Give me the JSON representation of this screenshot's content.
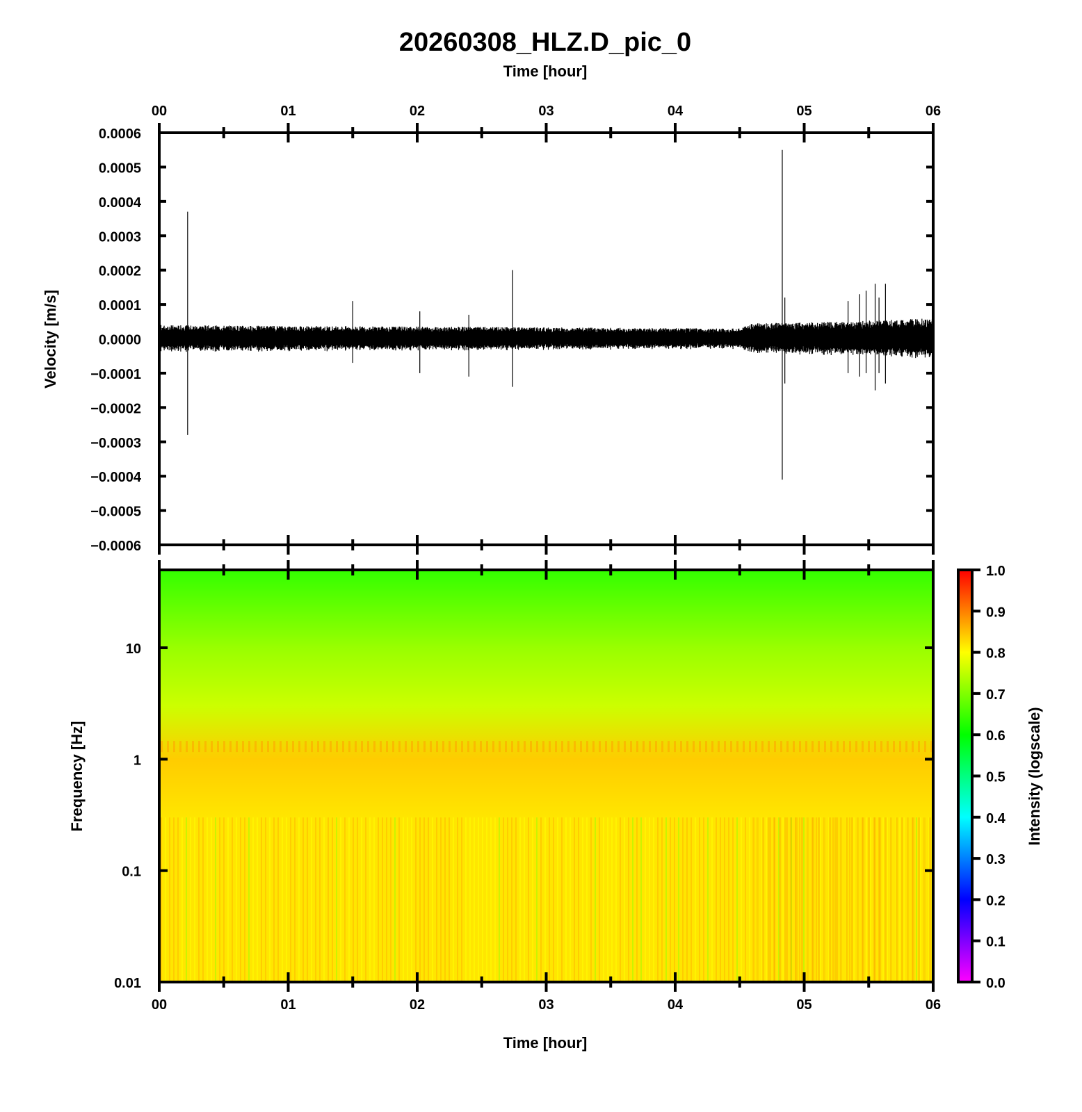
{
  "chart_data": [
    {
      "type": "line",
      "title": "20260308_HLZ.D_pic_0",
      "xlabel": "Time [hour]",
      "ylabel": "Velocity [m/s]",
      "x_ticks": [
        "00",
        "01",
        "02",
        "03",
        "04",
        "05",
        "06"
      ],
      "y_ticks": [
        "0.0006",
        "0.0005",
        "0.0004",
        "0.0003",
        "0.0002",
        "0.0001",
        "0.0000",
        "−0.0001",
        "−0.0002",
        "−0.0003",
        "−0.0004",
        "−0.0005",
        "−0.0006"
      ],
      "xlim": [
        0,
        6
      ],
      "ylim": [
        -0.0006,
        0.0006
      ],
      "noise_envelope": {
        "x_hours": [
          0,
          4.5,
          4.6,
          5.3,
          6
        ],
        "amplitude": [
          4e-05,
          3e-05,
          4.5e-05,
          5e-05,
          6e-05
        ]
      },
      "spikes": [
        {
          "t": 0.22,
          "max": 0.00037,
          "min": -0.00028
        },
        {
          "t": 1.5,
          "max": 0.00011,
          "min": -7e-05
        },
        {
          "t": 2.02,
          "max": 8e-05,
          "min": -0.0001
        },
        {
          "t": 2.4,
          "max": 7e-05,
          "min": -0.00011
        },
        {
          "t": 2.74,
          "max": 0.0002,
          "min": -0.00014
        },
        {
          "t": 4.83,
          "max": 0.00055,
          "min": -0.00041
        },
        {
          "t": 4.85,
          "max": 0.00012,
          "min": -0.00013
        },
        {
          "t": 5.34,
          "max": 0.00011,
          "min": -0.0001
        },
        {
          "t": 5.43,
          "max": 0.00013,
          "min": -0.00011
        },
        {
          "t": 5.48,
          "max": 0.00014,
          "min": -0.0001
        },
        {
          "t": 5.55,
          "max": 0.00016,
          "min": -0.00015
        },
        {
          "t": 5.58,
          "max": 0.00012,
          "min": -0.0001
        },
        {
          "t": 5.63,
          "max": 0.00016,
          "min": -0.00013
        }
      ],
      "grid": false
    },
    {
      "type": "heatmap",
      "xlabel": "Time [hour]",
      "ylabel": "Frequency [Hz]",
      "x_ticks": [
        "00",
        "01",
        "02",
        "03",
        "04",
        "05",
        "06"
      ],
      "y_ticks": [
        "10",
        "1",
        "0.1",
        "0.01"
      ],
      "xlim": [
        0,
        6
      ],
      "ylim": [
        0.01,
        50
      ],
      "y_scale": "log",
      "colorbar": {
        "label": "Intensity (logscale)",
        "ticks": [
          "1.0",
          "0.9",
          "0.8",
          "0.7",
          "0.6",
          "0.5",
          "0.4",
          "0.3",
          "0.2",
          "0.1",
          "0.0"
        ],
        "range": [
          0,
          1
        ],
        "colors": [
          "#ff00ff",
          "#0000ff",
          "#00ffff",
          "#00ff00",
          "#ffff00",
          "#ff0000"
        ]
      },
      "intensity_profile": {
        "frequency_hz": [
          0.01,
          0.3,
          1.0,
          3.0,
          10.0,
          50.0
        ],
        "intensity": [
          0.82,
          0.82,
          0.84,
          0.76,
          0.72,
          0.64
        ]
      },
      "elevated_region": {
        "t_start": 4.6,
        "t_end": 6.0,
        "f_max": 0.3,
        "intensity": 0.86
      }
    }
  ],
  "colors": {
    "trace": "#000000",
    "axes": "#000000"
  }
}
